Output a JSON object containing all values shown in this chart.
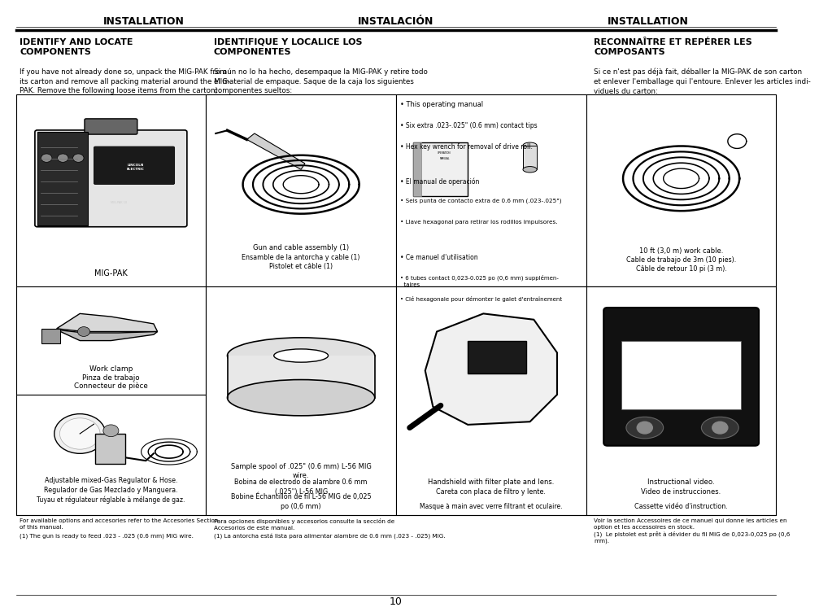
{
  "title_left": "INSTALLATION",
  "title_center": "INSTALACIÓN",
  "title_right": "INSTALLATION",
  "bg_color": "#ffffff",
  "text_color": "#000000",
  "section_left_heading": "IDENTIFY AND LOCATE\nCOMPONENTS",
  "section_center_heading": "IDENTIFIQUE Y LOCALICE LOS\nCOMPONENTES",
  "section_right_heading": "RECONNAÎTRE ET REPÉRER LES\nCOMPOSANTS",
  "left_para": "If you have not already done so, unpack the MIG-PAK from\nits carton and remove all packing material around the MIG-\nPAK. Remove the following loose items from the carton):",
  "center_para": "Si aún no lo ha hecho, desempaque la MIG-PAK y retire todo\nel material de empaque. Saque de la caja los siguientes\ncomponentes sueltos:",
  "right_para": "Si ce n'est pas déjà fait, déballer la MIG-PAK de son carton\net enlever l'emballage qui l'entoure. Enlever les articles indi-\nviduels du carton:",
  "footer_left1": "For available options and accesories refer to the Accesories Section\nof this manual.",
  "footer_left2": "(1) The gun is ready to feed .023 - .025 (0.6 mm) MIG wire.",
  "footer_center1": "Para opciones disponibles y accesorios consulte la sección de\nAccesorios de este manual.",
  "footer_center2": "(1) La antorcha está lista para alimentar alambre de 0.6 mm (.023 - .025) MIG.",
  "footer_right1": "Voir la section Accessoires de ce manuel qui donne les articles en\noption et les accessoires en stock.",
  "footer_right2": "(1)  Le pistolet est prêt à dévider du fil MIG de 0,023-0,025 po (0,6\nmm).",
  "page_number": "10",
  "col_bounds": [
    0.01,
    0.255,
    0.5,
    0.745,
    0.99
  ],
  "row_bounds": [
    0.855,
    0.535,
    0.355,
    0.155
  ]
}
